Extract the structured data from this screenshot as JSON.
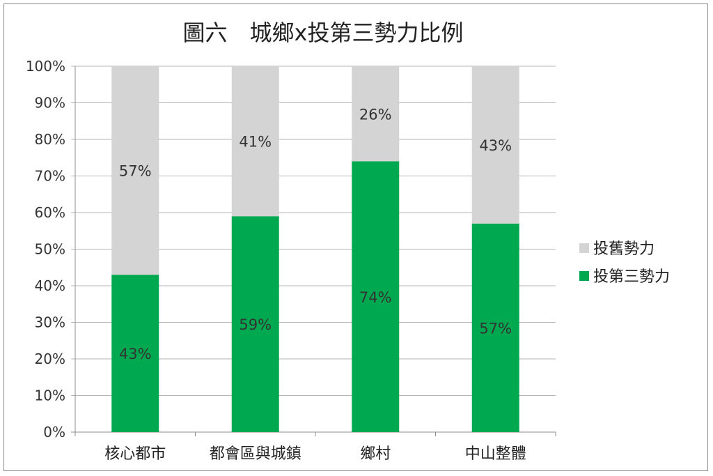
{
  "chart_data": {
    "type": "bar",
    "stacked": true,
    "title": "圖六　城鄉x投第三勢力比例",
    "categories": [
      "核心都市",
      "都會區與城鎮",
      "鄉村",
      "中山整體"
    ],
    "series": [
      {
        "name": "投第三勢力",
        "color": "#00a84f",
        "values": [
          43,
          59,
          74,
          57
        ],
        "labels": [
          "43%",
          "59%",
          "74%",
          "57%"
        ]
      },
      {
        "name": "投舊勢力",
        "color": "#d4d4d4",
        "values": [
          57,
          41,
          26,
          43
        ],
        "labels": [
          "57%",
          "41%",
          "26%",
          "43%"
        ]
      }
    ],
    "yticks": [
      "0%",
      "10%",
      "20%",
      "30%",
      "40%",
      "50%",
      "60%",
      "70%",
      "80%",
      "90%",
      "100%"
    ],
    "ylim": [
      0,
      100
    ],
    "grid": true,
    "legend": {
      "position": "right",
      "items": [
        {
          "label": "投舊勢力",
          "color": "#d4d4d4"
        },
        {
          "label": "投第三勢力",
          "color": "#00a84f"
        }
      ]
    }
  }
}
